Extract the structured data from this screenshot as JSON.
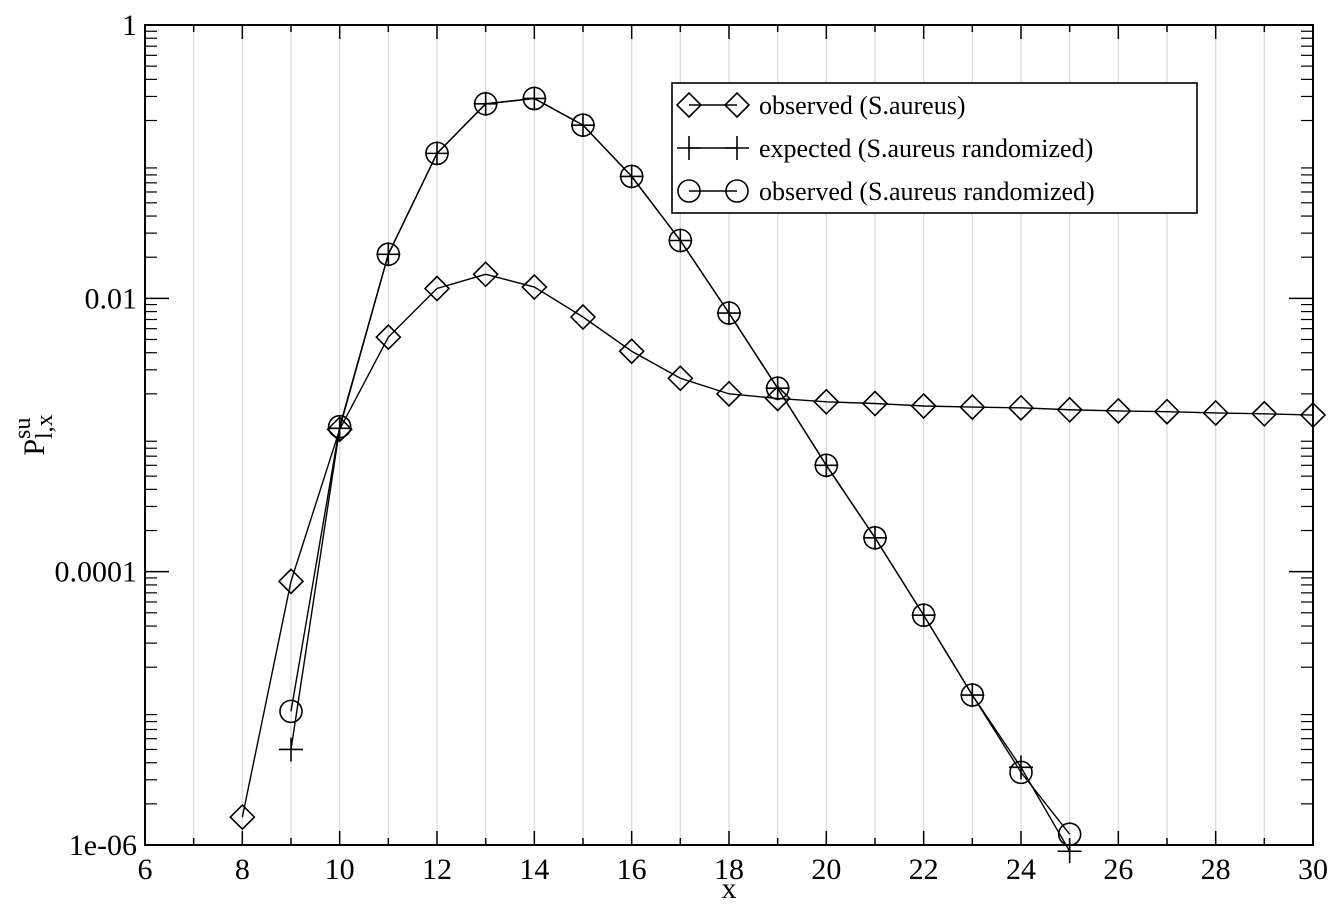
{
  "chart_data": {
    "type": "line",
    "title": "",
    "xlabel": "x",
    "ylabel": {
      "base": "P",
      "superscript": "su",
      "subscript": "l,x"
    },
    "x_scale": "linear",
    "y_scale": "log",
    "xlim": [
      6,
      30
    ],
    "ylim": [
      1e-06,
      1
    ],
    "x_ticks": [
      6,
      8,
      10,
      12,
      14,
      16,
      18,
      20,
      22,
      24,
      26,
      28,
      30
    ],
    "x_tick_labels": [
      "6",
      "8",
      "10",
      "12",
      "14",
      "16",
      "18",
      "20",
      "22",
      "24",
      "26",
      "28",
      "30"
    ],
    "y_ticks": [
      1e-06,
      0.0001,
      0.01,
      1
    ],
    "y_tick_labels": [
      "1e-06",
      "0.0001",
      "0.01",
      "1"
    ],
    "grid": "vertical lines at every integer x",
    "legend_position": "top-right",
    "series": [
      {
        "name": "observed (S.aureus)",
        "marker": "diamond",
        "x": [
          8,
          9,
          10,
          11,
          12,
          13,
          14,
          15,
          16,
          17,
          18,
          19,
          20,
          21,
          22,
          23,
          24,
          25,
          26,
          27,
          28,
          29,
          30
        ],
        "y": [
          1.6e-06,
          8.5e-05,
          0.0011,
          0.0052,
          0.0118,
          0.015,
          0.0121,
          0.0073,
          0.0041,
          0.0026,
          0.002,
          0.00185,
          0.00175,
          0.0017,
          0.00163,
          0.0016,
          0.00158,
          0.00153,
          0.0015,
          0.00148,
          0.00145,
          0.00143,
          0.0014
        ]
      },
      {
        "name": "expected (S.aureus randomized)",
        "marker": "plus",
        "x": [
          9,
          10,
          11,
          12,
          13,
          14,
          15,
          16,
          17,
          18,
          19,
          20,
          21,
          22,
          23,
          24,
          25
        ],
        "y": [
          5e-06,
          0.00112,
          0.021,
          0.115,
          0.265,
          0.29,
          0.185,
          0.078,
          0.0265,
          0.0078,
          0.0022,
          0.0006,
          0.000177,
          4.8e-05,
          1.25e-05,
          3.7e-06,
          9e-07
        ]
      },
      {
        "name": "observed (S.aureus randomized)",
        "marker": "circle",
        "x": [
          9,
          10,
          11,
          12,
          13,
          14,
          15,
          16,
          17,
          18,
          19,
          20,
          21,
          22,
          23,
          24,
          25
        ],
        "y": [
          9.5e-06,
          0.00115,
          0.021,
          0.115,
          0.265,
          0.29,
          0.185,
          0.078,
          0.0265,
          0.0078,
          0.0022,
          0.0006,
          0.000177,
          4.8e-05,
          1.25e-05,
          3.4e-06,
          1.2e-06
        ]
      }
    ]
  }
}
